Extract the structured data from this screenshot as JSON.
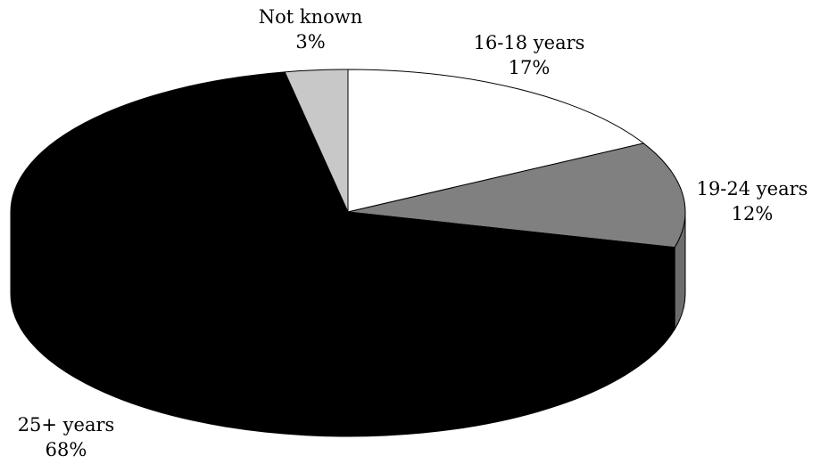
{
  "chart_data": {
    "type": "pie",
    "style": "3d",
    "title": "",
    "series": [
      {
        "values": [
          {
            "label": "16-18 years",
            "value": 17,
            "value_label": "17%",
            "color": "#ffffff"
          },
          {
            "label": "19-24 years",
            "value": 12,
            "value_label": "12%",
            "color": "#808080"
          },
          {
            "label": "25+ years",
            "value": 68,
            "value_label": "68%",
            "color": "#000000"
          },
          {
            "label": "Not known",
            "value": 3,
            "value_label": "3%",
            "color": "#c8c8c8"
          }
        ]
      }
    ],
    "legend": "none"
  }
}
